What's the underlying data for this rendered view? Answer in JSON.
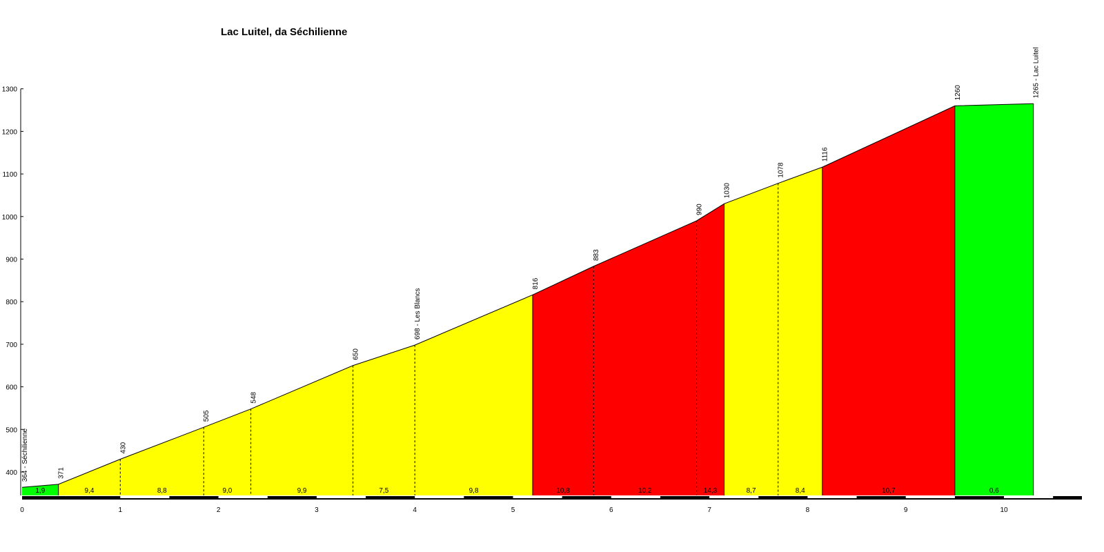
{
  "chart_data": {
    "type": "area",
    "title": "Lac Luitel, da Séchilienne",
    "xlim": [
      0,
      10.95
    ],
    "ylim": [
      340,
      1300
    ],
    "x_ticks": [
      "0",
      "1",
      "2",
      "3",
      "4",
      "5",
      "6",
      "7",
      "8",
      "9",
      "10"
    ],
    "y_ticks": [
      "400",
      "500",
      "600",
      "700",
      "800",
      "900",
      "1000",
      "1100",
      "1200",
      "1300"
    ],
    "points": [
      {
        "x": 0.0,
        "y": 364,
        "label": "364 - Séchilienne"
      },
      {
        "x": 0.37,
        "y": 371,
        "label": "371"
      },
      {
        "x": 1.0,
        "y": 430,
        "label": "430"
      },
      {
        "x": 1.85,
        "y": 505,
        "label": "505"
      },
      {
        "x": 2.33,
        "y": 548,
        "label": "548"
      },
      {
        "x": 3.37,
        "y": 650,
        "label": "650"
      },
      {
        "x": 4.0,
        "y": 698,
        "label": "698 - Les Blancs"
      },
      {
        "x": 5.2,
        "y": 816,
        "label": "816"
      },
      {
        "x": 5.82,
        "y": 883,
        "label": "883"
      },
      {
        "x": 6.87,
        "y": 990,
        "label": "990"
      },
      {
        "x": 7.15,
        "y": 1030,
        "label": "1030"
      },
      {
        "x": 7.7,
        "y": 1078,
        "label": "1078"
      },
      {
        "x": 8.15,
        "y": 1116,
        "label": "1116"
      },
      {
        "x": 9.5,
        "y": 1260,
        "label": "1260"
      },
      {
        "x": 10.3,
        "y": 1265,
        "label": "1265 - Lac Luitel"
      }
    ],
    "segments": [
      {
        "from": 0.0,
        "to": 0.37,
        "grade": "1,9",
        "color": "#00ff00"
      },
      {
        "from": 0.37,
        "to": 1.0,
        "grade": "9,4",
        "color": "#ffff00"
      },
      {
        "from": 1.0,
        "to": 1.85,
        "grade": "8,8",
        "color": "#ffff00"
      },
      {
        "from": 1.85,
        "to": 2.33,
        "grade": "9,0",
        "color": "#ffff00"
      },
      {
        "from": 2.33,
        "to": 3.37,
        "grade": "9,9",
        "color": "#ffff00"
      },
      {
        "from": 3.37,
        "to": 4.0,
        "grade": "7,5",
        "color": "#ffff00"
      },
      {
        "from": 4.0,
        "to": 5.2,
        "grade": "9,8",
        "color": "#ffff00"
      },
      {
        "from": 5.2,
        "to": 5.82,
        "grade": "10,8",
        "color": "#ff0000"
      },
      {
        "from": 5.82,
        "to": 6.87,
        "grade": "10,2",
        "color": "#ff0000"
      },
      {
        "from": 6.87,
        "to": 7.15,
        "grade": "14,3",
        "color": "#ff0000"
      },
      {
        "from": 7.15,
        "to": 7.7,
        "grade": "8,7",
        "color": "#ffff00"
      },
      {
        "from": 7.7,
        "to": 8.15,
        "grade": "8,4",
        "color": "#ffff00"
      },
      {
        "from": 8.15,
        "to": 9.5,
        "grade": "10,7",
        "color": "#ff0000"
      },
      {
        "from": 9.5,
        "to": 10.3,
        "grade": "0,6",
        "color": "#00ff00"
      }
    ],
    "grid": false,
    "legend": "none"
  }
}
